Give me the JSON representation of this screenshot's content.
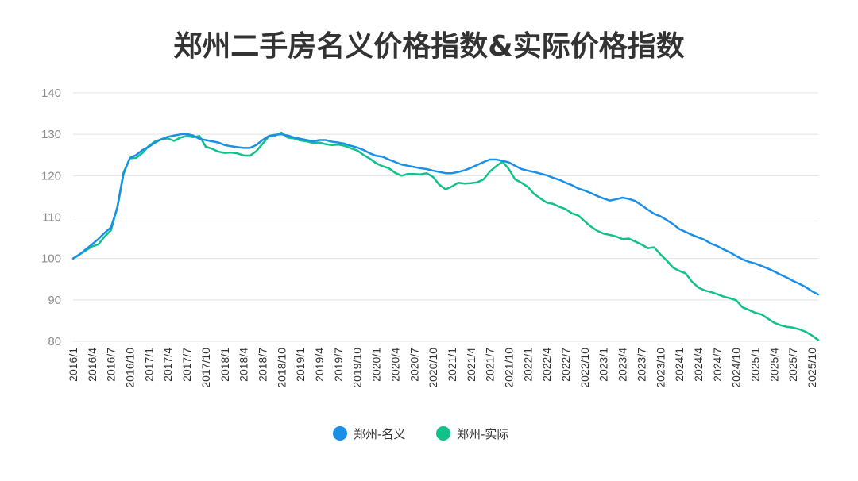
{
  "chart_data": {
    "type": "line",
    "title": "郑州二手房名义价格指数&实际价格指数",
    "xlabel": "",
    "ylabel": "",
    "ylim": [
      80,
      140
    ],
    "yticks": [
      80,
      90,
      100,
      110,
      120,
      130,
      140
    ],
    "grid": true,
    "legend": "bottom-center",
    "x_start": "2016/1",
    "x_end": "2025/10",
    "x_tick_step_months": 3,
    "x_tick_labels": [
      "2016/1",
      "2016/4",
      "2016/7",
      "2016/10",
      "2017/1",
      "2017/4",
      "2017/7",
      "2017/10",
      "2018/1",
      "2018/4",
      "2018/7",
      "2018/10",
      "2019/1",
      "2019/4",
      "2019/7",
      "2019/10",
      "2020/1",
      "2020/4",
      "2020/7",
      "2020/10",
      "2021/1",
      "2021/4",
      "2021/7",
      "2021/10",
      "2022/1",
      "2022/4",
      "2022/7",
      "2022/10",
      "2023/1",
      "2023/4",
      "2023/7",
      "2023/10",
      "2024/1",
      "2024/4",
      "2024/7",
      "2024/10",
      "2025/1",
      "2025/4",
      "2025/7",
      "2025/10"
    ],
    "series": [
      {
        "name": "郑州-名义",
        "color": "#1a8fe8",
        "values": [
          100.0,
          100.9,
          102.2,
          103.4,
          104.7,
          106.2,
          107.5,
          112.2,
          120.5,
          124.3,
          125.0,
          126.2,
          127.0,
          128.0,
          128.8,
          129.4,
          129.7,
          130.0,
          130.1,
          129.7,
          128.9,
          128.6,
          128.3,
          128.0,
          127.4,
          127.1,
          126.9,
          126.7,
          126.7,
          127.4,
          128.6,
          129.6,
          129.9,
          130.0,
          129.7,
          129.2,
          128.9,
          128.6,
          128.3,
          128.6,
          128.6,
          128.2,
          128.0,
          127.7,
          127.2,
          126.8,
          126.2,
          125.4,
          124.8,
          124.6,
          123.9,
          123.3,
          122.7,
          122.4,
          122.1,
          121.8,
          121.6,
          121.2,
          120.9,
          120.6,
          120.6,
          120.9,
          121.3,
          121.9,
          122.6,
          123.3,
          123.9,
          123.9,
          123.6,
          123.2,
          122.4,
          121.6,
          121.2,
          120.9,
          120.5,
          120.1,
          119.5,
          119.0,
          118.3,
          117.7,
          116.9,
          116.4,
          115.8,
          115.1,
          114.5,
          114.0,
          114.3,
          114.7,
          114.4,
          113.9,
          112.9,
          111.8,
          110.8,
          110.2,
          109.3,
          108.3,
          107.1,
          106.4,
          105.7,
          105.1,
          104.5,
          103.6,
          103.0,
          102.2,
          101.5,
          100.6,
          99.8,
          99.2,
          98.8,
          98.2,
          97.6,
          96.9,
          96.1,
          95.4,
          94.6,
          93.9,
          93.1,
          92.1,
          91.3
        ]
      },
      {
        "name": "郑州-实际",
        "color": "#12c08a",
        "values": [
          100.0,
          101.0,
          101.9,
          102.9,
          103.4,
          105.3,
          106.8,
          112.4,
          120.8,
          124.2,
          124.3,
          125.5,
          127.2,
          128.3,
          128.8,
          129.0,
          128.4,
          129.2,
          129.6,
          129.3,
          129.6,
          127.0,
          126.5,
          125.8,
          125.5,
          125.6,
          125.4,
          124.9,
          124.8,
          125.9,
          127.7,
          129.5,
          129.7,
          130.4,
          129.2,
          129.0,
          128.5,
          128.3,
          127.9,
          128.0,
          127.6,
          127.4,
          127.5,
          127.2,
          126.6,
          126.1,
          125.0,
          124.1,
          123.0,
          122.3,
          121.8,
          120.7,
          120.0,
          120.4,
          120.4,
          120.3,
          120.6,
          119.7,
          117.8,
          116.7,
          117.4,
          118.3,
          118.1,
          118.2,
          118.4,
          119.1,
          121.0,
          122.3,
          123.4,
          121.6,
          119.1,
          118.3,
          117.3,
          115.6,
          114.5,
          113.5,
          113.2,
          112.5,
          111.9,
          110.9,
          110.4,
          109.0,
          107.7,
          106.7,
          106.0,
          105.7,
          105.3,
          104.7,
          104.8,
          104.1,
          103.4,
          102.5,
          102.7,
          101.0,
          99.5,
          97.8,
          97.0,
          96.4,
          94.4,
          93.0,
          92.3,
          91.9,
          91.4,
          90.8,
          90.4,
          89.9,
          88.2,
          87.6,
          86.9,
          86.5,
          85.5,
          84.5,
          83.9,
          83.5,
          83.3,
          82.9,
          82.3,
          81.4,
          80.3
        ]
      }
    ]
  }
}
